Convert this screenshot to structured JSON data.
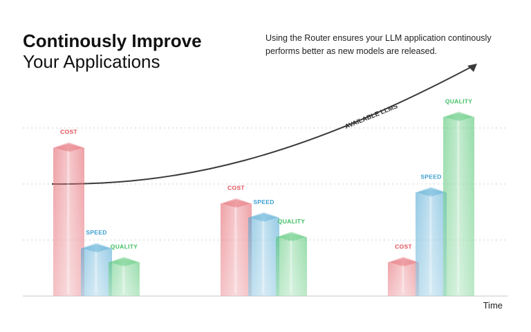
{
  "header": {
    "title_line1": "Continously Improve",
    "title_line2": "Your Applications",
    "description": "Using the Router ensures your LLM application continously performs better as new models are released."
  },
  "chart_data": {
    "type": "bar",
    "xlabel": "Time",
    "ylabel": "",
    "categories": [
      "",
      "",
      ""
    ],
    "grid": true,
    "series": [
      {
        "name": "COST",
        "color": "#e0525c",
        "values": [
          2.75,
          1.75,
          0.7
        ]
      },
      {
        "name": "SPEED",
        "color": "#3d9fcf",
        "values": [
          0.95,
          1.5,
          1.95
        ]
      },
      {
        "name": "QUALITY",
        "color": "#3fbf63",
        "values": [
          0.7,
          1.15,
          3.3
        ]
      }
    ],
    "ylim": [
      0,
      3.6
    ],
    "annotation": {
      "label": "AVAILABLE LLMS",
      "type": "rising-curve-arrow"
    }
  }
}
